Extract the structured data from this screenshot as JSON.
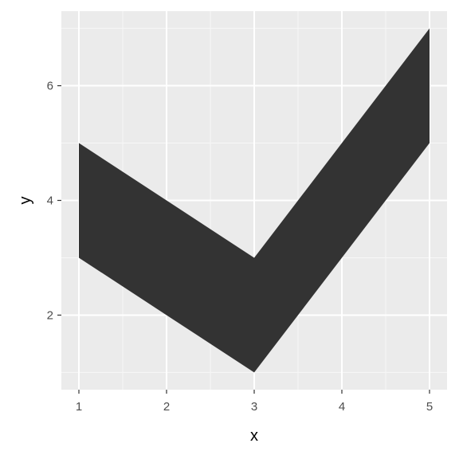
{
  "chart_data": {
    "type": "area",
    "geom": "ribbon",
    "x": [
      1,
      2,
      3,
      4,
      5
    ],
    "ymin": [
      3,
      2,
      1,
      3,
      5
    ],
    "ymax": [
      5,
      4,
      3,
      5,
      7
    ],
    "xlabel": "x",
    "ylabel": "y",
    "xlim": [
      0.8,
      5.2
    ],
    "ylim": [
      0.7,
      7.3
    ],
    "x_ticks": [
      1,
      2,
      3,
      4,
      5
    ],
    "y_ticks": [
      2,
      4,
      6
    ],
    "grid": true,
    "colors": {
      "panel_background": "#ebebeb",
      "grid_major": "#ffffff",
      "grid_minor": "#f7f7f7",
      "ribbon_fill": "#333333",
      "tick": "#333333"
    }
  }
}
